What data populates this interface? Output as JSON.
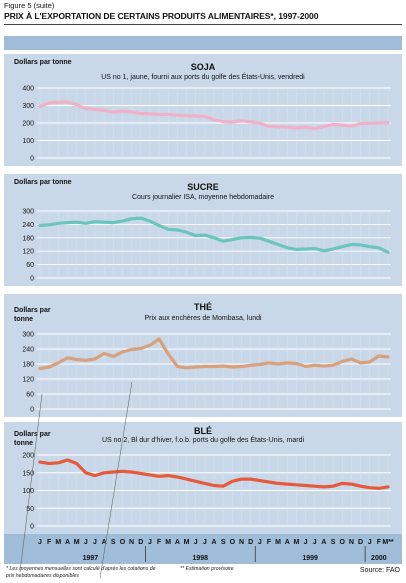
{
  "figure_label": "Figure 5 (suite)",
  "figure_title": "PRIX À L'EXPORTATION DE CERTAINS PRODUITS ALIMENTAIRES*, 1997-2000",
  "months": [
    "J",
    "F",
    "M",
    "A",
    "M",
    "J",
    "J",
    "A",
    "S",
    "O",
    "N",
    "D",
    "J",
    "F",
    "M",
    "A",
    "M",
    "J",
    "J",
    "A",
    "S",
    "O",
    "N",
    "D",
    "J",
    "F",
    "M",
    "A",
    "M",
    "J",
    "J",
    "A",
    "S",
    "O",
    "N",
    "D",
    "J",
    "F",
    "M**"
  ],
  "years": [
    "1997",
    "1998",
    "1999",
    "2000"
  ],
  "footnote_1": "* Les moyennes mensuelles sont calculé d'après les cotations de prix hebdomadaires disponibles",
  "footnote_2": "** Estimation provisoire",
  "source": "Source: FAO",
  "colors": {
    "panel_bg": "#c8d8e8",
    "band": "#9fbcd8",
    "soja": "#f0b0c8",
    "sucre": "#6cc4be",
    "the": "#d9a07c",
    "ble": "#e65a3c"
  },
  "chart_data": [
    {
      "type": "line",
      "title": "SOJA",
      "subtitle": "US no 1, jaune, fourni aux ports du golfe des États-Unis, vendredi",
      "ylabel": "Dollars par tonne",
      "yticks": [
        0,
        100,
        200,
        300,
        400
      ],
      "ylim": [
        0,
        400
      ],
      "series": [
        {
          "name": "SOJA",
          "color": "#f0b0c8",
          "values": [
            295,
            315,
            318,
            320,
            305,
            282,
            278,
            272,
            262,
            268,
            262,
            255,
            252,
            248,
            250,
            245,
            242,
            240,
            238,
            218,
            208,
            206,
            212,
            208,
            198,
            182,
            178,
            176,
            172,
            176,
            168,
            180,
            192,
            188,
            182,
            196,
            198,
            200,
            202
          ]
        }
      ]
    },
    {
      "type": "line",
      "title": "SUCRE",
      "subtitle": "Cours journalier ISA, moyenne hebdomadaire",
      "ylabel": "Dollars par tonne",
      "yticks": [
        0,
        60,
        120,
        180,
        240,
        300
      ],
      "ylim": [
        0,
        300
      ],
      "series": [
        {
          "name": "SUCRE",
          "color": "#6cc4be",
          "values": [
            235,
            238,
            245,
            248,
            250,
            245,
            252,
            250,
            248,
            255,
            265,
            268,
            255,
            235,
            218,
            215,
            205,
            190,
            192,
            180,
            165,
            172,
            180,
            182,
            178,
            165,
            150,
            135,
            128,
            130,
            132,
            122,
            130,
            140,
            150,
            148,
            140,
            135,
            115
          ]
        }
      ]
    },
    {
      "type": "line",
      "title": "THÉ",
      "subtitle": "Prix aux enchères de Mombasa, lundi",
      "ylabel": "Dollars par tonne",
      "yticks": [
        0,
        60,
        120,
        180,
        240,
        300
      ],
      "ylim": [
        0,
        300
      ],
      "series": [
        {
          "name": "THÉ",
          "color": "#d9a07c",
          "values": [
            162,
            168,
            185,
            205,
            198,
            195,
            200,
            222,
            210,
            228,
            238,
            242,
            255,
            280,
            220,
            170,
            165,
            168,
            170,
            170,
            172,
            168,
            170,
            175,
            178,
            185,
            180,
            185,
            182,
            170,
            175,
            172,
            175,
            190,
            200,
            185,
            188,
            212,
            208
          ]
        }
      ]
    },
    {
      "type": "line",
      "title": "BLÉ",
      "subtitle": "US no 2, Bl dur d'hiver, f.o.b. ports du golfe des États-Unis, mardi",
      "ylabel": "Dollars par tonne",
      "yticks": [
        0,
        50,
        100,
        150,
        200
      ],
      "ylim": [
        0,
        200
      ],
      "series": [
        {
          "name": "BLÉ",
          "color": "#e65a3c",
          "values": [
            180,
            176,
            178,
            186,
            176,
            150,
            142,
            150,
            152,
            154,
            152,
            148,
            144,
            140,
            142,
            138,
            132,
            126,
            120,
            114,
            112,
            126,
            132,
            132,
            128,
            124,
            120,
            118,
            116,
            114,
            112,
            110,
            112,
            120,
            118,
            112,
            108,
            106,
            110
          ]
        }
      ]
    }
  ]
}
